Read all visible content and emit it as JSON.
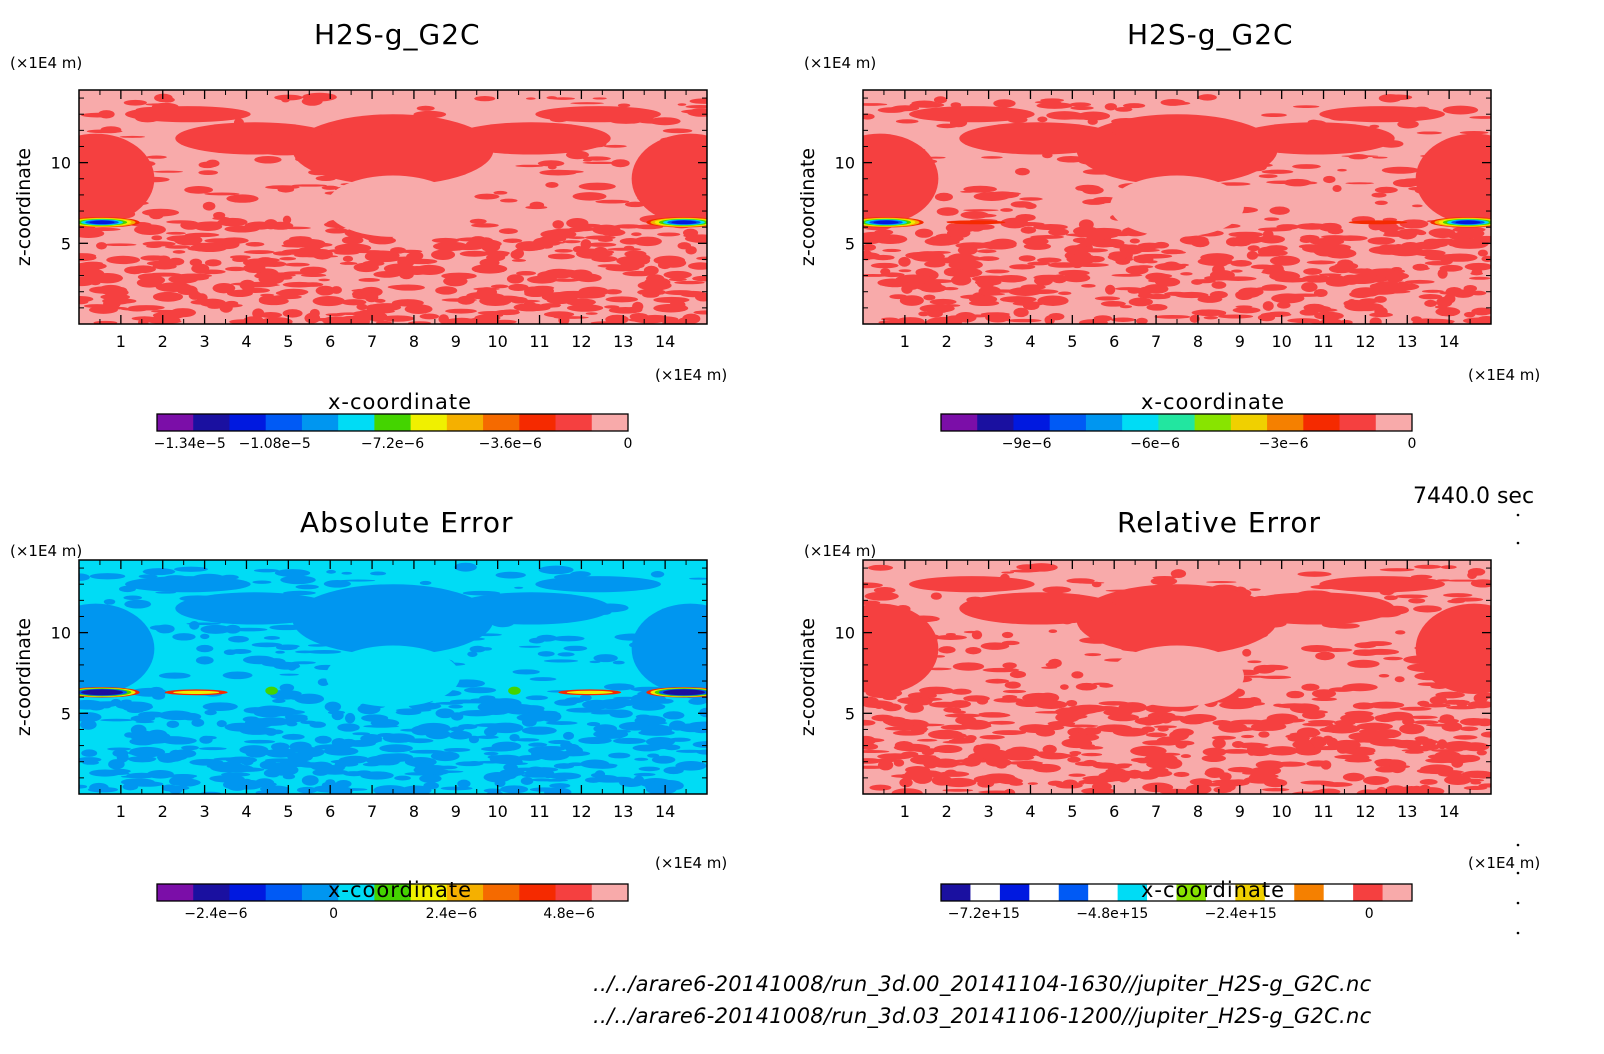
{
  "figure": {
    "time_label": "7440.0 sec",
    "source_files": [
      "../../arare6-20141008/run_3d.00_20141104-1630//jupiter_H2S-g_G2C.nc",
      "../../arare6-20141008/run_3d.03_20141106-1200//jupiter_H2S-g_G2C.nc"
    ]
  },
  "chart_data": [
    {
      "type": "heatmap",
      "title": "H2S-g_G2C",
      "xlabel": "x-coordinate",
      "ylabel": "z-coordinate",
      "x_unit": "(×1E4 m)",
      "y_unit": "(×1E4 m)",
      "xlim": [
        0,
        15
      ],
      "ylim": [
        0,
        14.5
      ],
      "x_ticks": [
        1,
        2,
        3,
        4,
        5,
        6,
        7,
        8,
        9,
        10,
        11,
        12,
        13,
        14
      ],
      "y_ticks": [
        5,
        10
      ],
      "colorbar": {
        "range": [
          -1.44e-05,
          0
        ],
        "colors": [
          "#7b0ea8",
          "#1a10a0",
          "#0019e0",
          "#005af5",
          "#0096f0",
          "#00dcf5",
          "#44d400",
          "#f0f000",
          "#f5b000",
          "#f56a00",
          "#f52a00",
          "#f54040",
          "#f8aaaa"
        ],
        "tick_values": [
          -1.34e-05,
          -1.08e-05,
          -7.2e-06,
          -3.6e-06,
          0
        ],
        "tick_labels": [
          "−1.34e−5",
          "−1.08e−5",
          "−7.2e−6",
          "−3.6e−6",
          "0"
        ]
      }
    },
    {
      "type": "heatmap",
      "title": "H2S-g_G2C",
      "xlabel": "x-coordinate",
      "ylabel": "z-coordinate",
      "x_unit": "(×1E4 m)",
      "y_unit": "(×1E4 m)",
      "xlim": [
        0,
        15
      ],
      "ylim": [
        0,
        14.5
      ],
      "x_ticks": [
        1,
        2,
        3,
        4,
        5,
        6,
        7,
        8,
        9,
        10,
        11,
        12,
        13,
        14
      ],
      "y_ticks": [
        5,
        10
      ],
      "colorbar": {
        "range": [
          -1.1e-05,
          0
        ],
        "colors": [
          "#7b0ea8",
          "#1a10a0",
          "#0019e0",
          "#005af5",
          "#0096f0",
          "#00dcf5",
          "#22e6a0",
          "#88e400",
          "#f0d000",
          "#f58000",
          "#f52a00",
          "#f54040",
          "#f8aaaa"
        ],
        "tick_values": [
          -9e-06,
          -6e-06,
          -3e-06,
          0
        ],
        "tick_labels": [
          "−9e−6",
          "−6e−6",
          "−3e−6",
          "0"
        ]
      }
    },
    {
      "type": "heatmap",
      "title": "Absolute Error",
      "xlabel": "x-coordinate",
      "ylabel": "z-coordinate",
      "x_unit": "(×1E4 m)",
      "y_unit": "(×1E4 m)",
      "xlim": [
        0,
        15
      ],
      "ylim": [
        0,
        14.5
      ],
      "x_ticks": [
        1,
        2,
        3,
        4,
        5,
        6,
        7,
        8,
        9,
        10,
        11,
        12,
        13,
        14
      ],
      "y_ticks": [
        5,
        10
      ],
      "colorbar": {
        "range": [
          -3.6e-06,
          6e-06
        ],
        "colors": [
          "#7b0ea8",
          "#1a10a0",
          "#0019e0",
          "#005af5",
          "#0096f0",
          "#00dcf5",
          "#44d400",
          "#f0f000",
          "#f5b000",
          "#f56a00",
          "#f52a00",
          "#f54040",
          "#f8aaaa"
        ],
        "tick_values": [
          -2.4e-06,
          0,
          2.4e-06,
          4.8e-06
        ],
        "tick_labels": [
          "−2.4e−6",
          "0",
          "2.4e−6",
          "4.8e−6"
        ]
      }
    },
    {
      "type": "heatmap",
      "title": "Relative Error",
      "xlabel": "x-coordinate",
      "ylabel": "z-coordinate",
      "x_unit": "(×1E4 m)",
      "y_unit": "(×1E4 m)",
      "xlim": [
        0,
        15
      ],
      "ylim": [
        0,
        14.5
      ],
      "x_ticks": [
        1,
        2,
        3,
        4,
        5,
        6,
        7,
        8,
        9,
        10,
        11,
        12,
        13,
        14
      ],
      "y_ticks": [
        5,
        10
      ],
      "colorbar": {
        "range": [
          -8000000000000000.0,
          800000000000000.0
        ],
        "colors": [
          "#1a10a0",
          "#ffffff",
          "#0019e0",
          "#ffffff",
          "#005af5",
          "#ffffff",
          "#00dcf5",
          "#ffffff",
          "#88e400",
          "#ffffff",
          "#f0d000",
          "#ffffff",
          "#f58000",
          "#ffffff",
          "#f54040",
          "#f8aaaa"
        ],
        "tick_values": [
          -7200000000000000.0,
          -4800000000000000.0,
          -2400000000000000.0,
          0
        ],
        "tick_labels": [
          "−7.2e+15",
          "−4.8e+15",
          "−2.4e+15",
          "0"
        ]
      }
    }
  ]
}
